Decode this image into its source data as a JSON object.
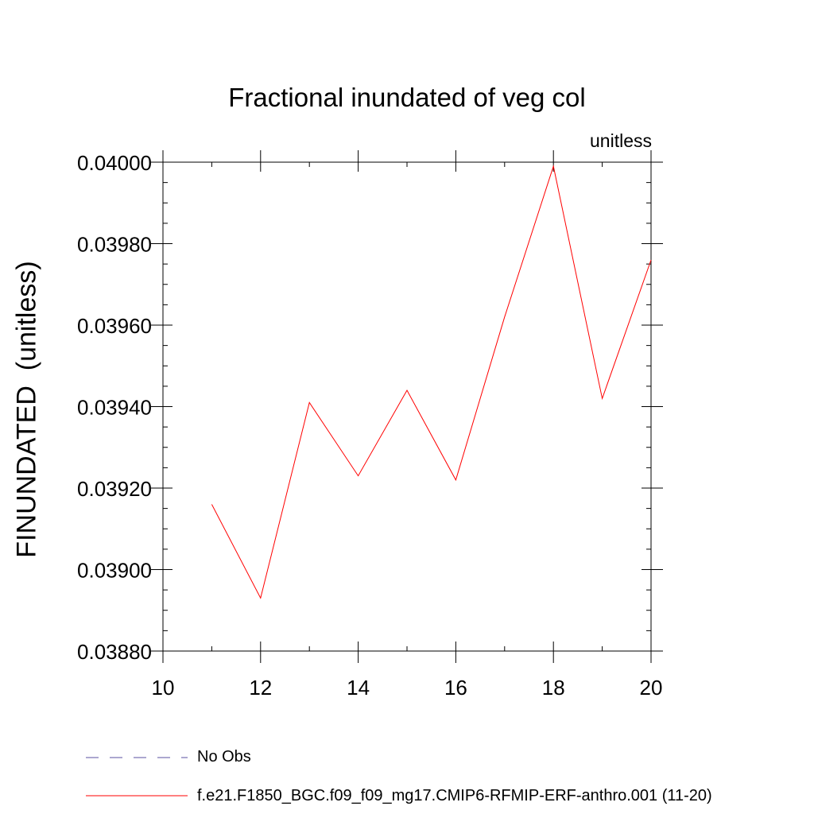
{
  "chart_data": {
    "type": "line",
    "title": "Fractional inundated of veg col",
    "units_label": "unitless",
    "ylabel": "FINUNDATED  (unitless)",
    "xlabel": "",
    "xlim": [
      10,
      20
    ],
    "ylim": [
      0.0388,
      0.04
    ],
    "x_ticks": [
      "10",
      "12",
      "14",
      "16",
      "18",
      "20"
    ],
    "y_ticks": [
      "0.03880",
      "0.03900",
      "0.03920",
      "0.03940",
      "0.03960",
      "0.03980",
      "0.04000"
    ],
    "grid": false,
    "legend_position": "bottom-left",
    "series": [
      {
        "name": "No Obs",
        "color": "#5a4fa0",
        "dash": "dashed",
        "x": [],
        "y": []
      },
      {
        "name": "f.e21.F1850_BGC.f09_f09_mg17.CMIP6-RFMIP-ERF-anthro.001 (11-20)",
        "color": "#ff0000",
        "dash": "solid",
        "x": [
          11,
          12,
          13,
          14,
          15,
          16,
          17,
          18,
          19,
          20
        ],
        "y": [
          0.03916,
          0.03893,
          0.03941,
          0.03923,
          0.03944,
          0.03922,
          0.03962,
          0.03999,
          0.03942,
          0.03976
        ]
      }
    ]
  }
}
